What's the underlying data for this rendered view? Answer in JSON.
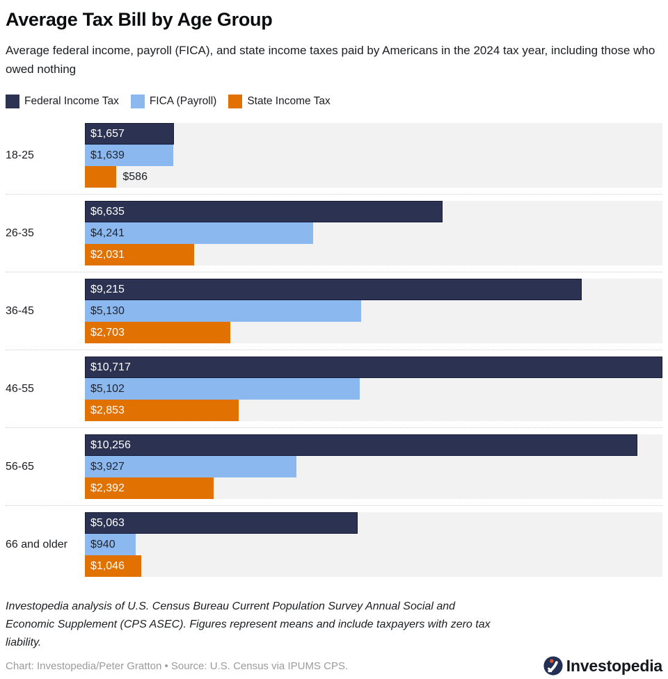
{
  "header": {
    "title": "Average Tax Bill by Age Group",
    "subtitle": "Average federal income, payroll (FICA), and state income taxes paid by Americans in the 2024 tax year, including those who owed nothing"
  },
  "legend": [
    {
      "label": "Federal Income Tax",
      "color": "#2b3252"
    },
    {
      "label": "FICA (Payroll)",
      "color": "#8cb8f0"
    },
    {
      "label": "State Income Tax",
      "color": "#e17101"
    }
  ],
  "chart_data": {
    "type": "bar",
    "orientation": "horizontal",
    "title": "Average Tax Bill by Age Group",
    "xlabel": "",
    "ylabel": "",
    "xmax": 10717,
    "grid": false,
    "legend_position": "top",
    "row_background": "#f2f2f3",
    "categories": [
      "18-25",
      "26-35",
      "36-45",
      "46-55",
      "56-65",
      "66 and older"
    ],
    "series": [
      {
        "name": "Federal Income Tax",
        "color": "#2b3252",
        "border": "#161c38",
        "label_color": "#ffffff",
        "values": [
          1657,
          6635,
          9215,
          10717,
          10256,
          5063
        ],
        "labels": [
          "$1,657",
          "$6,635",
          "$9,215",
          "$10,717",
          "$10,256",
          "$5,063"
        ]
      },
      {
        "name": "FICA (Payroll)",
        "color": "#8cb8f0",
        "border": "",
        "label_color": "#1f2430",
        "values": [
          1639,
          4241,
          5130,
          5102,
          3927,
          940
        ],
        "labels": [
          "$1,639",
          "$4,241",
          "$5,130",
          "$5,102",
          "$3,927",
          "$940"
        ]
      },
      {
        "name": "State Income Tax",
        "color": "#e17101",
        "border": "",
        "label_color": "#ffffff",
        "values": [
          586,
          2031,
          2703,
          2853,
          2392,
          1046
        ],
        "labels": [
          "$586",
          "$2,031",
          "$2,703",
          "$2,853",
          "$2,392",
          "$1,046"
        ]
      }
    ]
  },
  "footer": {
    "note": "Investopedia analysis of U.S. Census Bureau Current Population Survey Annual Social and Economic Supplement (CPS ASEC). Figures represent means and include taxpayers with zero tax liability.",
    "credit": "Chart: Investopedia/Peter Gratton • Source: U.S. Census via IPUMS CPS.",
    "logo_text": "Investopedia",
    "logo_colors": {
      "circle": "#232f55",
      "swoosh": "#ffffff",
      "dot": "#e1552b"
    }
  }
}
